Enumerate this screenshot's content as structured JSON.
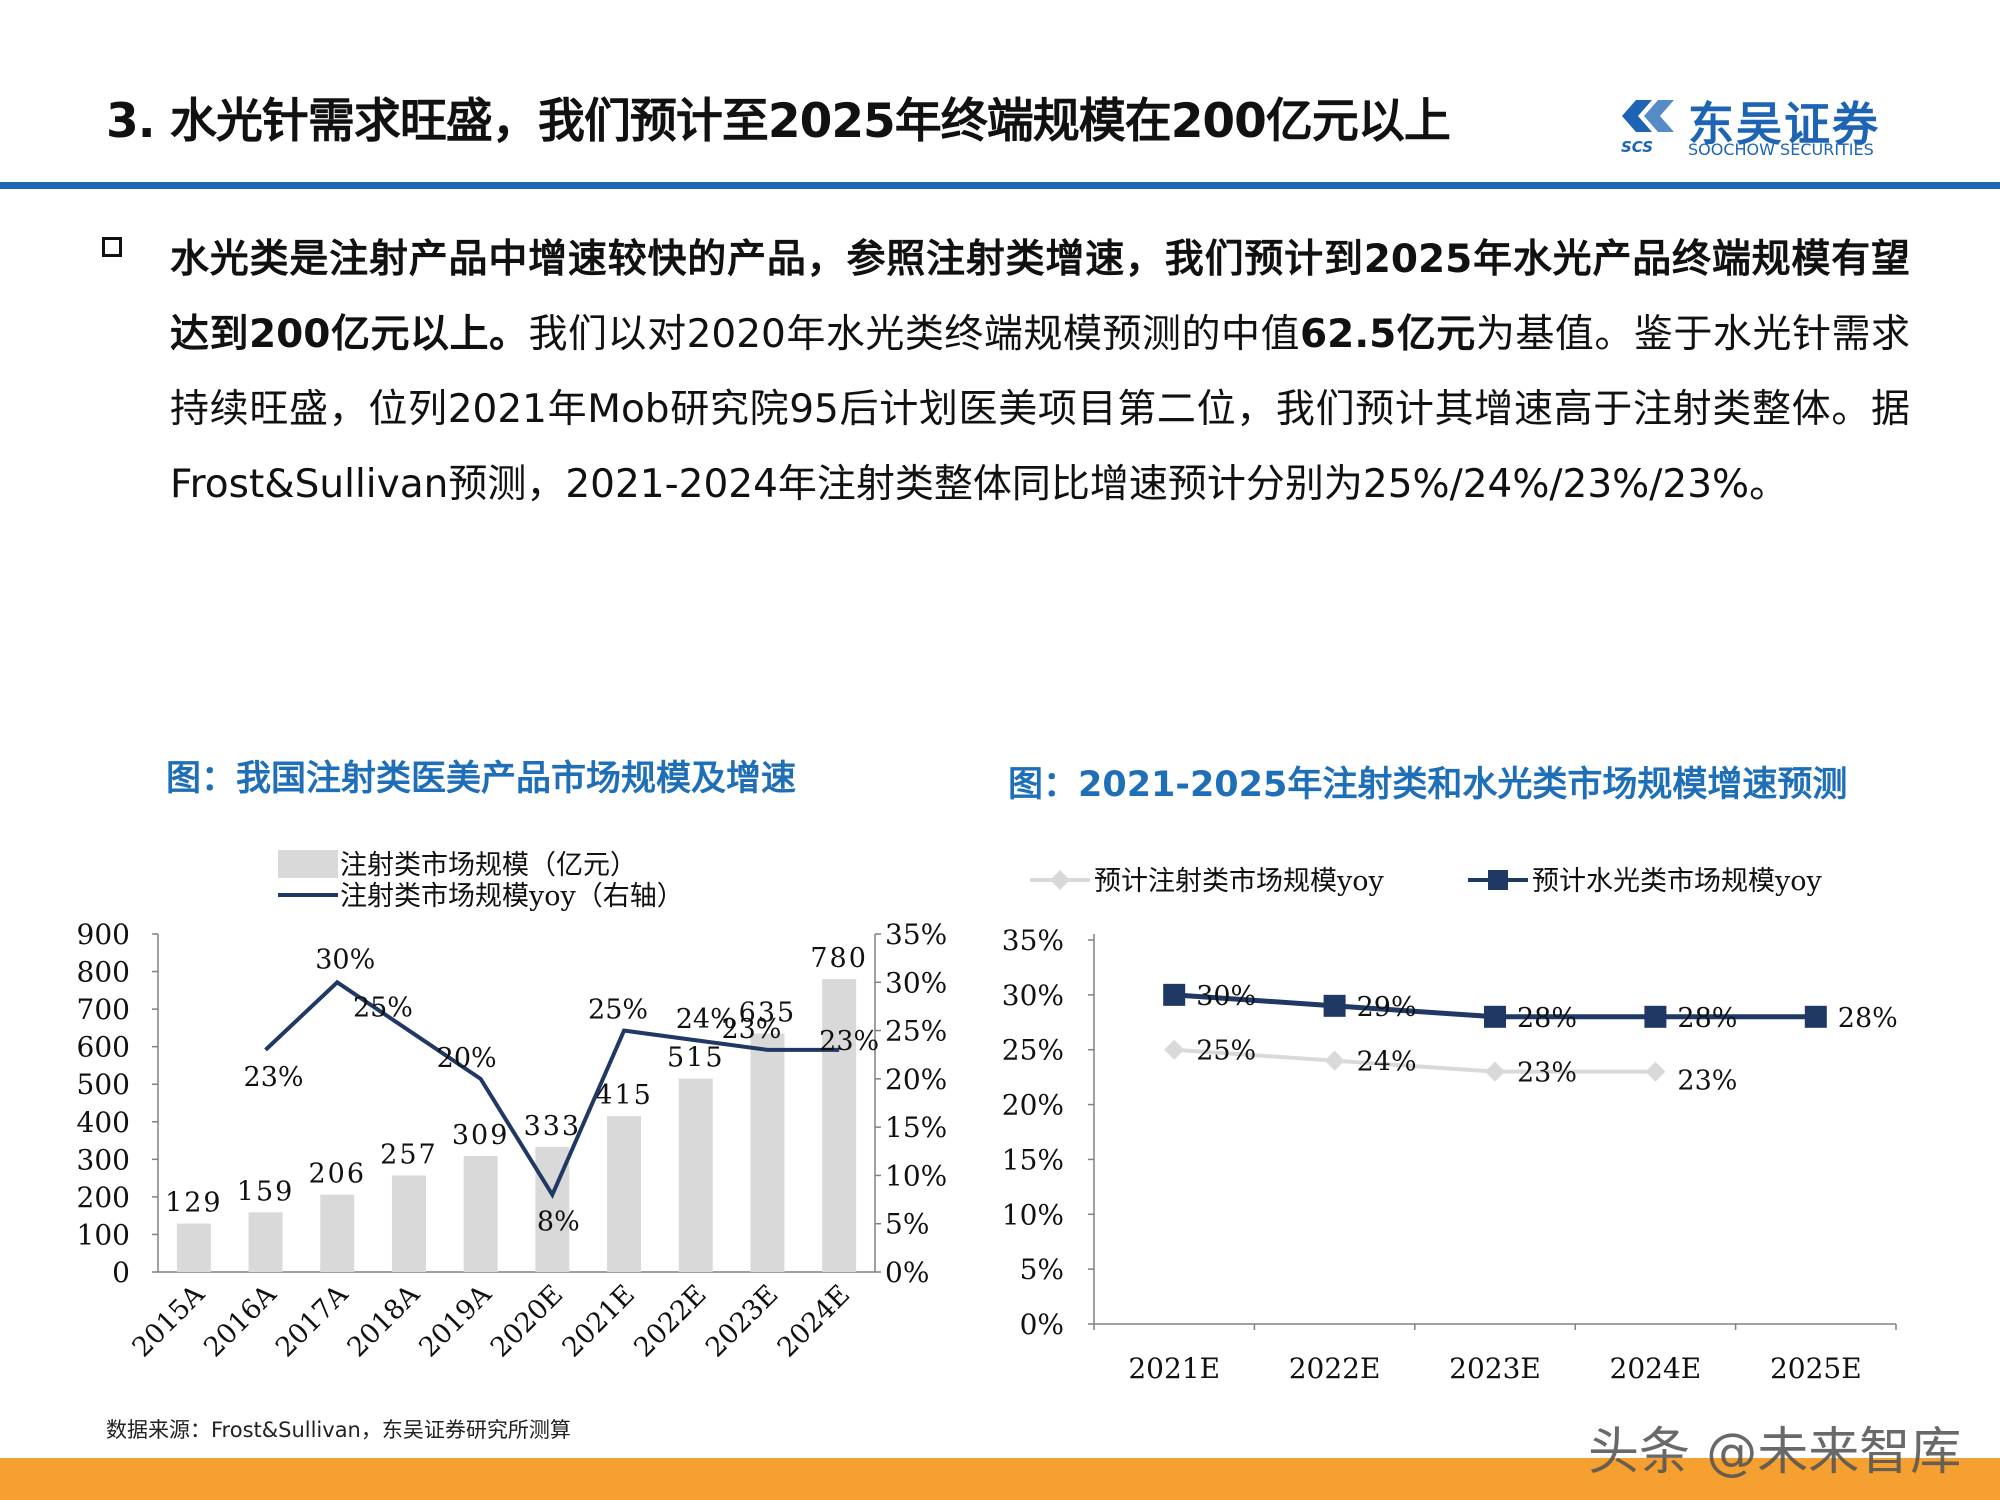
{
  "header": {
    "title": "3. 水光针需求旺盛，我们预计至2025年终端规模在200亿元以上"
  },
  "logo": {
    "name_cn": "东吴证券",
    "abbr": "SCS",
    "name_en": "SOOCHOW SECURITIES",
    "color": "#1d64b4"
  },
  "body": {
    "bold_lead": "水光类是注射产品中增速较快的产品，参照注射类增速，我们预计到2025年水光产品终端规模有望达到200亿元以上。",
    "text_1": "我们以对2020年水光类终端规模预测的中值",
    "bold_value": "62.5亿元",
    "text_2": "为基值。鉴于水光针需求持续旺盛，位列2021年Mob研究院95后计划医美项目第二位，我们预计其增速高于注射类整体。据Frost&Sullivan预测，2021-2024年注射类整体同比增速预计分别为25%/24%/23%/23%。"
  },
  "chart1_title": "图：我国注射类医美产品市场规模及增速",
  "chart2_title": "图：2021-2025年注射类和水光类市场规模增速预测",
  "source": "数据来源：Frost&Sullivan，东吴证券研究所测算",
  "watermark": "头条 @未来智库",
  "colors": {
    "accent_blue": "#1f66b5",
    "bar_gray": "#d9d9d9",
    "navy_line": "#1f3864",
    "light_gray_line": "#d9d9d9",
    "footer_orange": "#f5a030"
  },
  "chart_data": [
    {
      "type": "bar",
      "title": "图：我国注射类医美产品市场规模及增速",
      "categories": [
        "2015A",
        "2016A",
        "2017A",
        "2018A",
        "2019A",
        "2020E",
        "2021E",
        "2022E",
        "2023E",
        "2024E"
      ],
      "series": [
        {
          "name": "注射类市场规模（亿元）",
          "kind": "bar",
          "axis": "left",
          "values": [
            129,
            159,
            206,
            257,
            309,
            333,
            415,
            515,
            635,
            780
          ],
          "labels": [
            "129",
            "159",
            "206",
            "257",
            "309",
            "333",
            "415",
            "515",
            "635",
            "780"
          ]
        },
        {
          "name": "注射类市场规模yoy（右轴）",
          "kind": "line",
          "axis": "right",
          "values": [
            null,
            23,
            30,
            25,
            20,
            8,
            25,
            24,
            23,
            23
          ],
          "labels": [
            "",
            "23%",
            "30%",
            "25%",
            "20%",
            "8%",
            "25%",
            "24%",
            "23%",
            "23%"
          ]
        }
      ],
      "ylim_left": [
        0,
        900
      ],
      "yticks_left": [
        "0",
        "100",
        "200",
        "300",
        "400",
        "500",
        "600",
        "700",
        "800",
        "900"
      ],
      "ylim_right": [
        0,
        35
      ],
      "yticks_right": [
        "0%",
        "5%",
        "10%",
        "15%",
        "20%",
        "25%",
        "30%",
        "35%"
      ],
      "legend": "top-left"
    },
    {
      "type": "line",
      "title": "图：2021-2025年注射类和水光类市场规模增速预测",
      "categories": [
        "2021E",
        "2022E",
        "2023E",
        "2024E",
        "2025E"
      ],
      "series": [
        {
          "name": "预计注射类市场规模yoy",
          "values": [
            25,
            24,
            23,
            23,
            null
          ],
          "labels": [
            "25%",
            "24%",
            "23%",
            "23%",
            ""
          ],
          "color": "#d9d9d9",
          "marker": "diamond"
        },
        {
          "name": "预计水光类市场规模yoy",
          "values": [
            30,
            29,
            28,
            28,
            28
          ],
          "labels": [
            "30%",
            "29%",
            "28%",
            "28%",
            "28%"
          ],
          "color": "#1f3864",
          "marker": "square"
        }
      ],
      "ylim": [
        0,
        35
      ],
      "yticks": [
        "0%",
        "5%",
        "10%",
        "15%",
        "20%",
        "25%",
        "30%",
        "35%"
      ],
      "legend": "top"
    }
  ]
}
